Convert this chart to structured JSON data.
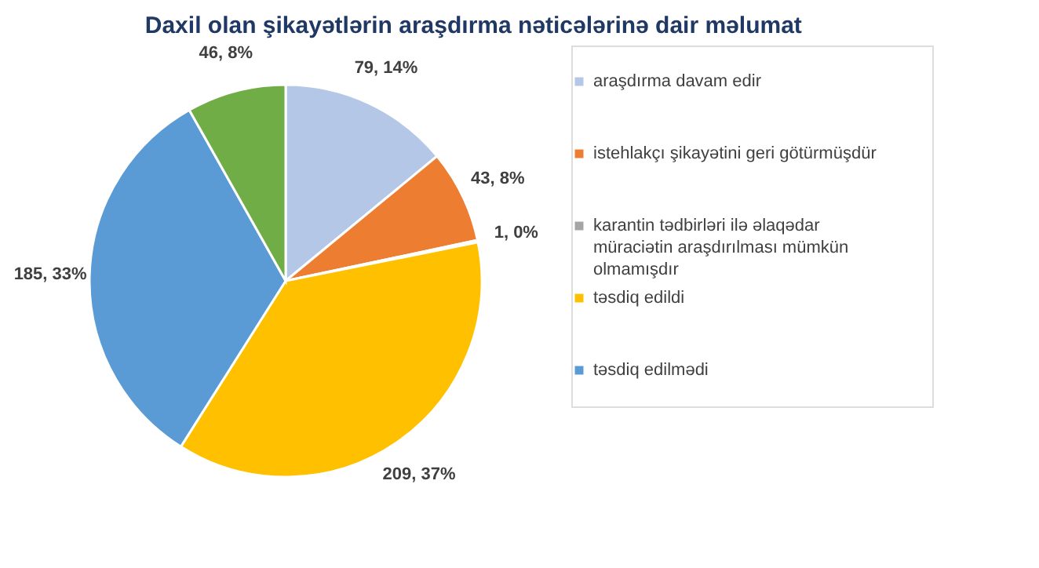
{
  "chart_data": {
    "type": "pie",
    "title": "Daxil olan şikayətlərin araşdırma nəticələrinə dair məlumat",
    "categories": [
      "araşdırma davam edir",
      "istehlakçı şikayətini geri götürmüşdür",
      "karantin tədbirləri ilə əlaqədar müraciətin araşdırılması mümkün olmamışdır",
      "təsdiq edildi",
      "təsdiq edilmədi",
      null
    ],
    "values": [
      79,
      43,
      1,
      209,
      185,
      46
    ],
    "colors": [
      "#b4c7e7",
      "#ed7d31",
      "#a5a5a5",
      "#ffc000",
      "#5b9bd5",
      "#70ad47"
    ],
    "value_labels": [
      "79, 14%",
      "43, 8%",
      "1, 0%",
      "209, 37%",
      "185, 33%",
      "46, 8%"
    ],
    "legend": "right"
  }
}
